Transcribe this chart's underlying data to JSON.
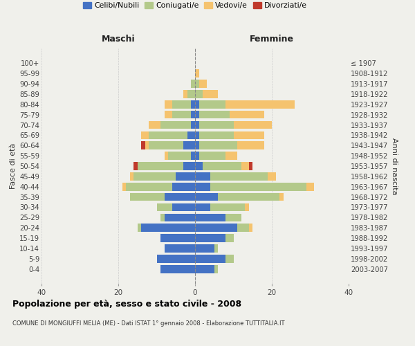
{
  "age_groups": [
    "0-4",
    "5-9",
    "10-14",
    "15-19",
    "20-24",
    "25-29",
    "30-34",
    "35-39",
    "40-44",
    "45-49",
    "50-54",
    "55-59",
    "60-64",
    "65-69",
    "70-74",
    "75-79",
    "80-84",
    "85-89",
    "90-94",
    "95-99",
    "100+"
  ],
  "birth_years": [
    "2003-2007",
    "1998-2002",
    "1993-1997",
    "1988-1992",
    "1983-1987",
    "1978-1982",
    "1973-1977",
    "1968-1972",
    "1963-1967",
    "1958-1962",
    "1953-1957",
    "1948-1952",
    "1943-1947",
    "1938-1942",
    "1933-1937",
    "1928-1932",
    "1923-1927",
    "1918-1922",
    "1913-1917",
    "1908-1912",
    "≤ 1907"
  ],
  "colors": {
    "celibi": "#4472c4",
    "coniugati": "#b3c98a",
    "vedovi": "#f5c36e",
    "divorziati": "#c0392b"
  },
  "maschi": {
    "celibi": [
      9,
      10,
      8,
      9,
      14,
      8,
      6,
      8,
      6,
      5,
      3,
      1,
      3,
      2,
      1,
      1,
      1,
      0,
      0,
      0,
      0
    ],
    "coniugati": [
      0,
      0,
      0,
      0,
      1,
      1,
      4,
      9,
      12,
      11,
      12,
      6,
      9,
      10,
      8,
      5,
      5,
      2,
      1,
      0,
      0
    ],
    "vedovi": [
      0,
      0,
      0,
      0,
      0,
      0,
      0,
      0,
      1,
      1,
      0,
      1,
      1,
      2,
      3,
      2,
      2,
      1,
      0,
      0,
      0
    ],
    "divorziati": [
      0,
      0,
      0,
      0,
      0,
      0,
      0,
      0,
      0,
      0,
      1,
      0,
      1,
      0,
      0,
      0,
      0,
      0,
      0,
      0,
      0
    ]
  },
  "femmine": {
    "celibi": [
      5,
      8,
      5,
      8,
      11,
      8,
      4,
      6,
      4,
      4,
      2,
      1,
      1,
      1,
      1,
      1,
      1,
      0,
      0,
      0,
      0
    ],
    "coniugati": [
      1,
      2,
      1,
      2,
      3,
      4,
      9,
      16,
      25,
      15,
      10,
      7,
      10,
      9,
      9,
      8,
      7,
      2,
      1,
      0,
      0
    ],
    "vedovi": [
      0,
      0,
      0,
      0,
      1,
      0,
      1,
      1,
      2,
      2,
      2,
      3,
      7,
      8,
      10,
      9,
      18,
      4,
      2,
      1,
      0
    ],
    "divorziati": [
      0,
      0,
      0,
      0,
      0,
      0,
      0,
      0,
      0,
      0,
      1,
      0,
      0,
      0,
      0,
      0,
      0,
      0,
      0,
      0,
      0
    ]
  },
  "xlim": 40,
  "title": "Popolazione per età, sesso e stato civile - 2008",
  "subtitle": "COMUNE DI MONGIUFFI MELIA (ME) - Dati ISTAT 1° gennaio 2008 - Elaborazione TUTTITALIA.IT",
  "ylabel_left": "Fasce di età",
  "ylabel_right": "Anni di nascita",
  "xlabel_left": "Maschi",
  "xlabel_right": "Femmine",
  "background_color": "#f0f0eb",
  "grid_color": "#cccccc"
}
